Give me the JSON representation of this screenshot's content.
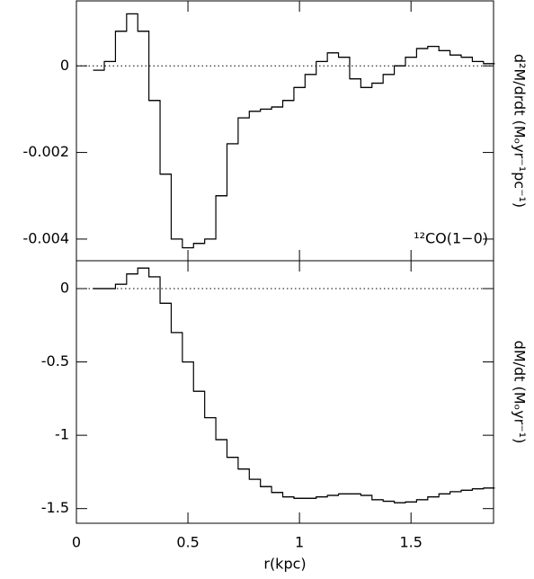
{
  "chart_data": [
    {
      "type": "line",
      "drawstyle": "steps",
      "color": "#000000",
      "reference_line": 0,
      "ylabel": "d²M/drdt (Mₒyr⁻¹pc⁻¹)",
      "annotation": "¹²CO(1−0)",
      "x": [
        0.1,
        0.15,
        0.2,
        0.25,
        0.3,
        0.35,
        0.4,
        0.45,
        0.5,
        0.55,
        0.6,
        0.65,
        0.7,
        0.75,
        0.8,
        0.85,
        0.9,
        0.95,
        1.0,
        1.05,
        1.1,
        1.15,
        1.2,
        1.25,
        1.3,
        1.35,
        1.4,
        1.45,
        1.5,
        1.55,
        1.6,
        1.65,
        1.7,
        1.75,
        1.8,
        1.85
      ],
      "series": [
        {
          "values": [
            -0.0001,
            0.0001,
            0.0008,
            0.0012,
            0.0008,
            -0.0008,
            -0.0025,
            -0.004,
            -0.0042,
            -0.0041,
            -0.004,
            -0.003,
            -0.0018,
            -0.0012,
            -0.00105,
            -0.001,
            -0.00095,
            -0.0008,
            -0.0005,
            -0.0002,
            0.0001,
            0.0003,
            0.0002,
            -0.0003,
            -0.0005,
            -0.0004,
            -0.0002,
            0.0,
            0.0002,
            0.0004,
            0.00045,
            0.00035,
            0.00025,
            0.0002,
            0.0001,
            5e-05
          ]
        }
      ],
      "xlim": [
        0,
        1.87
      ],
      "xticks": [
        0,
        0.5,
        1,
        1.5
      ],
      "ylim": [
        -0.0045,
        0.0015
      ],
      "yticks": [
        0,
        -0.002,
        -0.004
      ]
    },
    {
      "type": "line",
      "drawstyle": "steps",
      "color": "#000000",
      "reference_line": 0,
      "ylabel": "dM/dt (Mₒyr⁻¹)",
      "xlabel": "r(kpc)",
      "x": [
        0.1,
        0.15,
        0.2,
        0.25,
        0.3,
        0.35,
        0.4,
        0.45,
        0.5,
        0.55,
        0.6,
        0.65,
        0.7,
        0.75,
        0.8,
        0.85,
        0.9,
        0.95,
        1.0,
        1.05,
        1.1,
        1.15,
        1.2,
        1.25,
        1.3,
        1.35,
        1.4,
        1.45,
        1.5,
        1.55,
        1.6,
        1.65,
        1.7,
        1.75,
        1.8,
        1.85
      ],
      "series": [
        {
          "values": [
            0,
            0,
            0.03,
            0.1,
            0.14,
            0.08,
            -0.1,
            -0.3,
            -0.5,
            -0.7,
            -0.88,
            -1.03,
            -1.15,
            -1.23,
            -1.3,
            -1.35,
            -1.39,
            -1.42,
            -1.43,
            -1.43,
            -1.42,
            -1.41,
            -1.4,
            -1.4,
            -1.41,
            -1.44,
            -1.45,
            -1.46,
            -1.455,
            -1.44,
            -1.42,
            -1.4,
            -1.385,
            -1.375,
            -1.365,
            -1.36
          ]
        }
      ],
      "xlim": [
        0,
        1.87
      ],
      "xticks": [
        0,
        0.5,
        1,
        1.5
      ],
      "ylim": [
        -1.6,
        0.19
      ],
      "yticks": [
        0,
        -0.5,
        -1,
        -1.5
      ]
    }
  ]
}
